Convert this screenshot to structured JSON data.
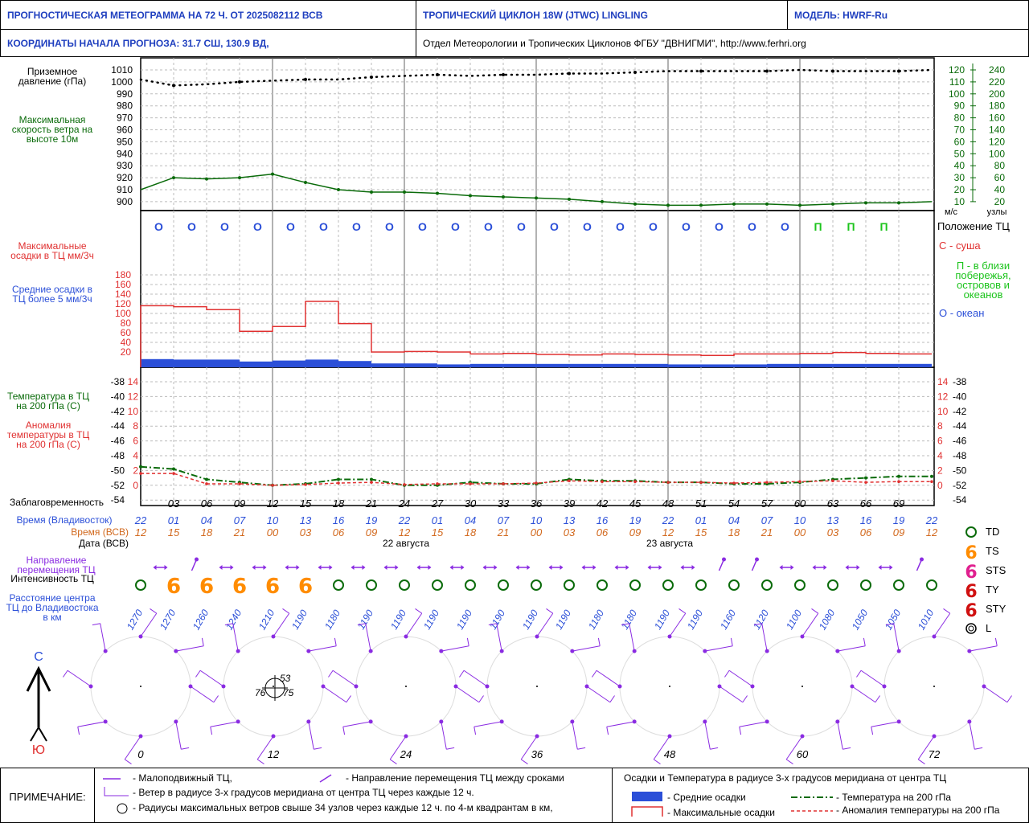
{
  "header": {
    "title": "ПРОГНОСТИЧЕСКАЯ МЕТЕОГРАММА НА 72 Ч. ОТ 2025082112 ВСВ",
    "cyclone": "ТРОПИЧЕСКИЙ ЦИКЛОН  18W  (JTWC)  LINGLING",
    "model": "МОДЕЛЬ:   HWRF-Ru",
    "coords": "КООРДИНАТЫ НАЧАЛА ПРОГНОЗА:  31.7  СШ,   130.9  ВД,",
    "org": "Отдел Метеорологии и Тропических Циклонов ФГБУ \"ДВНИГМИ\",  http://www.ferhri.org"
  },
  "labels": {
    "pressure": "Приземное давление (гПа)",
    "wind": "Максимальная скорость ветра на высоте 10м",
    "precip_max": "Максимальные осадки в ТЦ мм/3ч",
    "precip_avg": "Средние осадки в ТЦ более 5 мм/3ч",
    "position_title": "Положение ТЦ",
    "legend_land": "С - суша",
    "legend_coast": "П - в близи побережья, островов и океанов",
    "legend_ocean": "О - океан",
    "temp200": "Температура в ТЦ на 200 гПа (С)",
    "anomaly": "Аномалия температуры в ТЦ на 200 гПа (С)",
    "lead": "Заблаговременность",
    "time_vlad": "Время (Владивосток)",
    "time_utc": "Время (ВСВ)",
    "date": "Дата (ВСВ)",
    "date1": "22 августа",
    "date2": "23 августа",
    "direction": "Направление перемещения ТЦ",
    "intensity": "Интенсивность ТЦ",
    "distance": "Расстояние центра ТЦ до Владивостока в км",
    "unit_ms": "м/с",
    "unit_knots": "узлы",
    "north": "С",
    "south": "Ю"
  },
  "intensity_legend": [
    "TD",
    "TS",
    "STS",
    "TY",
    "STY",
    "L"
  ],
  "footer": {
    "note": "ПРИМЕЧАНИЕ:",
    "n1": "- Малоподвижный ТЦ,",
    "n2": "- Направление перемещения ТЦ между сроками",
    "n3": "- Ветер в радиусе 3-х градусов меридиана от центра ТЦ через каждые 12 ч.",
    "n4": "- Радиусы максимальных ветров свыше 34 узлов через каждые 12 ч. по 4-м квадрантам в км,",
    "right_title": "Осадки и Температура в радиусе 3-х градусов меридиана от центра ТЦ",
    "r1": "- Средние осадки",
    "r2": "- Максимальные осадки",
    "r3": "- Температура на 200 гПа",
    "r4": "- Аномалия температуры на 200 гПа"
  },
  "colors": {
    "pressure": "#000000",
    "wind": "#0a6b0a",
    "precip_max": "#e03030",
    "precip_avg": "#2b4fd8",
    "temp": "#0a6b0a",
    "anomaly": "#e03030",
    "wind_barb": "#8a2be2",
    "td": "#0a6b0a",
    "ts": "#ff8c00"
  },
  "chart_data": [
    {
      "type": "line",
      "name": "pressure-wind",
      "x": [
        0,
        3,
        6,
        9,
        12,
        15,
        18,
        21,
        24,
        27,
        30,
        33,
        36,
        39,
        42,
        45,
        48,
        51,
        54,
        57,
        60,
        63,
        66,
        69,
        72
      ],
      "pressure_ticks": [
        1010,
        1000,
        990,
        980,
        970,
        960,
        950,
        940,
        930,
        920,
        910,
        900
      ],
      "pressure": [
        1002,
        997,
        998,
        1000,
        1001,
        1002,
        1002,
        1004,
        1005,
        1006,
        1005,
        1006,
        1006,
        1007,
        1007,
        1008,
        1009,
        1009,
        1009,
        1009,
        1010,
        1009,
        1009,
        1009,
        1010
      ],
      "ms_ticks": [
        120,
        110,
        100,
        90,
        80,
        70,
        60,
        50,
        40,
        30,
        20,
        10
      ],
      "knot_ticks": [
        240,
        220,
        200,
        180,
        160,
        140,
        120,
        100,
        80,
        60,
        40,
        20
      ],
      "wind_ms": [
        20,
        30,
        29,
        30,
        33,
        26,
        20,
        18,
        18,
        17,
        15,
        14,
        13,
        12,
        10,
        8,
        7,
        7,
        8,
        8,
        7,
        8,
        9,
        9,
        10
      ]
    },
    {
      "type": "bar",
      "name": "precipitation",
      "x": [
        0,
        3,
        6,
        9,
        12,
        15,
        18,
        21,
        24,
        27,
        30,
        33,
        36,
        39,
        42,
        45,
        48,
        51,
        54,
        57,
        60,
        63,
        66,
        69,
        72
      ],
      "yticks": [
        180,
        160,
        140,
        120,
        100,
        80,
        60,
        40,
        20
      ],
      "max": [
        116,
        114,
        108,
        63,
        73,
        125,
        79,
        20,
        21,
        20,
        16,
        17,
        15,
        14,
        16,
        15,
        14,
        13,
        16,
        16,
        17,
        19,
        17,
        16
      ],
      "avg": [
        17,
        16,
        16,
        12,
        14,
        16,
        13,
        8,
        8,
        6,
        7,
        7,
        7,
        7,
        7,
        7,
        6,
        6,
        6,
        7,
        7,
        7,
        7,
        7
      ],
      "positions": [
        "О",
        "О",
        "О",
        "О",
        "О",
        "О",
        "О",
        "О",
        "О",
        "О",
        "О",
        "О",
        "О",
        "О",
        "О",
        "О",
        "О",
        "О",
        "О",
        "О",
        "П",
        "П",
        "П"
      ]
    },
    {
      "type": "line",
      "name": "temperature-200hPa",
      "x": [
        0,
        3,
        6,
        9,
        12,
        15,
        18,
        21,
        24,
        27,
        30,
        33,
        36,
        39,
        42,
        45,
        48,
        51,
        54,
        57,
        60,
        63,
        66,
        69,
        72
      ],
      "temp_ticks": [
        -38,
        -40,
        -42,
        -44,
        -46,
        -48,
        -50,
        -52,
        -54
      ],
      "anomaly_ticks": [
        14,
        12,
        10,
        8,
        6,
        4,
        2,
        0
      ],
      "temp": [
        -49.5,
        -49.8,
        -51.2,
        -51.6,
        -52.0,
        -51.8,
        -51.2,
        -51.2,
        -52.0,
        -52.0,
        -51.6,
        -51.8,
        -51.8,
        -51.2,
        -51.4,
        -51.4,
        -51.6,
        -51.6,
        -51.8,
        -51.8,
        -51.6,
        -51.2,
        -51.0,
        -50.8,
        -50.8
      ],
      "anomaly": [
        1.6,
        1.6,
        0.2,
        0.2,
        0.0,
        0.1,
        0.3,
        0.4,
        0.1,
        0.2,
        0.2,
        0.2,
        0.3,
        0.6,
        0.5,
        0.5,
        0.4,
        0.4,
        0.3,
        0.4,
        0.5,
        0.6,
        0.4,
        0.5,
        0.5
      ]
    }
  ],
  "axis": {
    "lead_ticks": [
      "03",
      "06",
      "09",
      "12",
      "15",
      "18",
      "21",
      "24",
      "27",
      "30",
      "33",
      "36",
      "39",
      "42",
      "45",
      "48",
      "51",
      "54",
      "57",
      "60",
      "63",
      "66",
      "69"
    ],
    "time_vlad": [
      "22",
      "01",
      "04",
      "07",
      "10",
      "13",
      "16",
      "19",
      "22",
      "01",
      "04",
      "07",
      "10",
      "13",
      "16",
      "19",
      "22",
      "01",
      "04",
      "07",
      "10",
      "13",
      "16",
      "19",
      "22"
    ],
    "time_utc": [
      "12",
      "15",
      "18",
      "21",
      "00",
      "03",
      "06",
      "09",
      "12",
      "15",
      "18",
      "21",
      "00",
      "03",
      "06",
      "09",
      "12",
      "15",
      "18",
      "21",
      "00",
      "03",
      "06",
      "09",
      "12"
    ],
    "intensity": [
      "TD",
      "TS",
      "TS",
      "TS",
      "TS",
      "TS",
      "TD",
      "TD",
      "TD",
      "TD",
      "TD",
      "TD",
      "TD",
      "TD",
      "TD",
      "TD",
      "TD",
      "TD",
      "TD",
      "TD",
      "TD",
      "TD",
      "TD",
      "TD",
      "TD"
    ],
    "distance": [
      "1270",
      "1270",
      "1260",
      "1240",
      "1210",
      "1190",
      "1180",
      "1190",
      "1190",
      "1190",
      "1190",
      "1190",
      "1190",
      "1190",
      "1180",
      "1180",
      "1190",
      "1190",
      "1160",
      "1120",
      "1100",
      "1080",
      "1050",
      "1050",
      "1010"
    ],
    "barb_labels": [
      "0",
      "12",
      "24",
      "36",
      "48",
      "60",
      "72"
    ],
    "radii": [
      "53",
      "76",
      "75"
    ]
  }
}
